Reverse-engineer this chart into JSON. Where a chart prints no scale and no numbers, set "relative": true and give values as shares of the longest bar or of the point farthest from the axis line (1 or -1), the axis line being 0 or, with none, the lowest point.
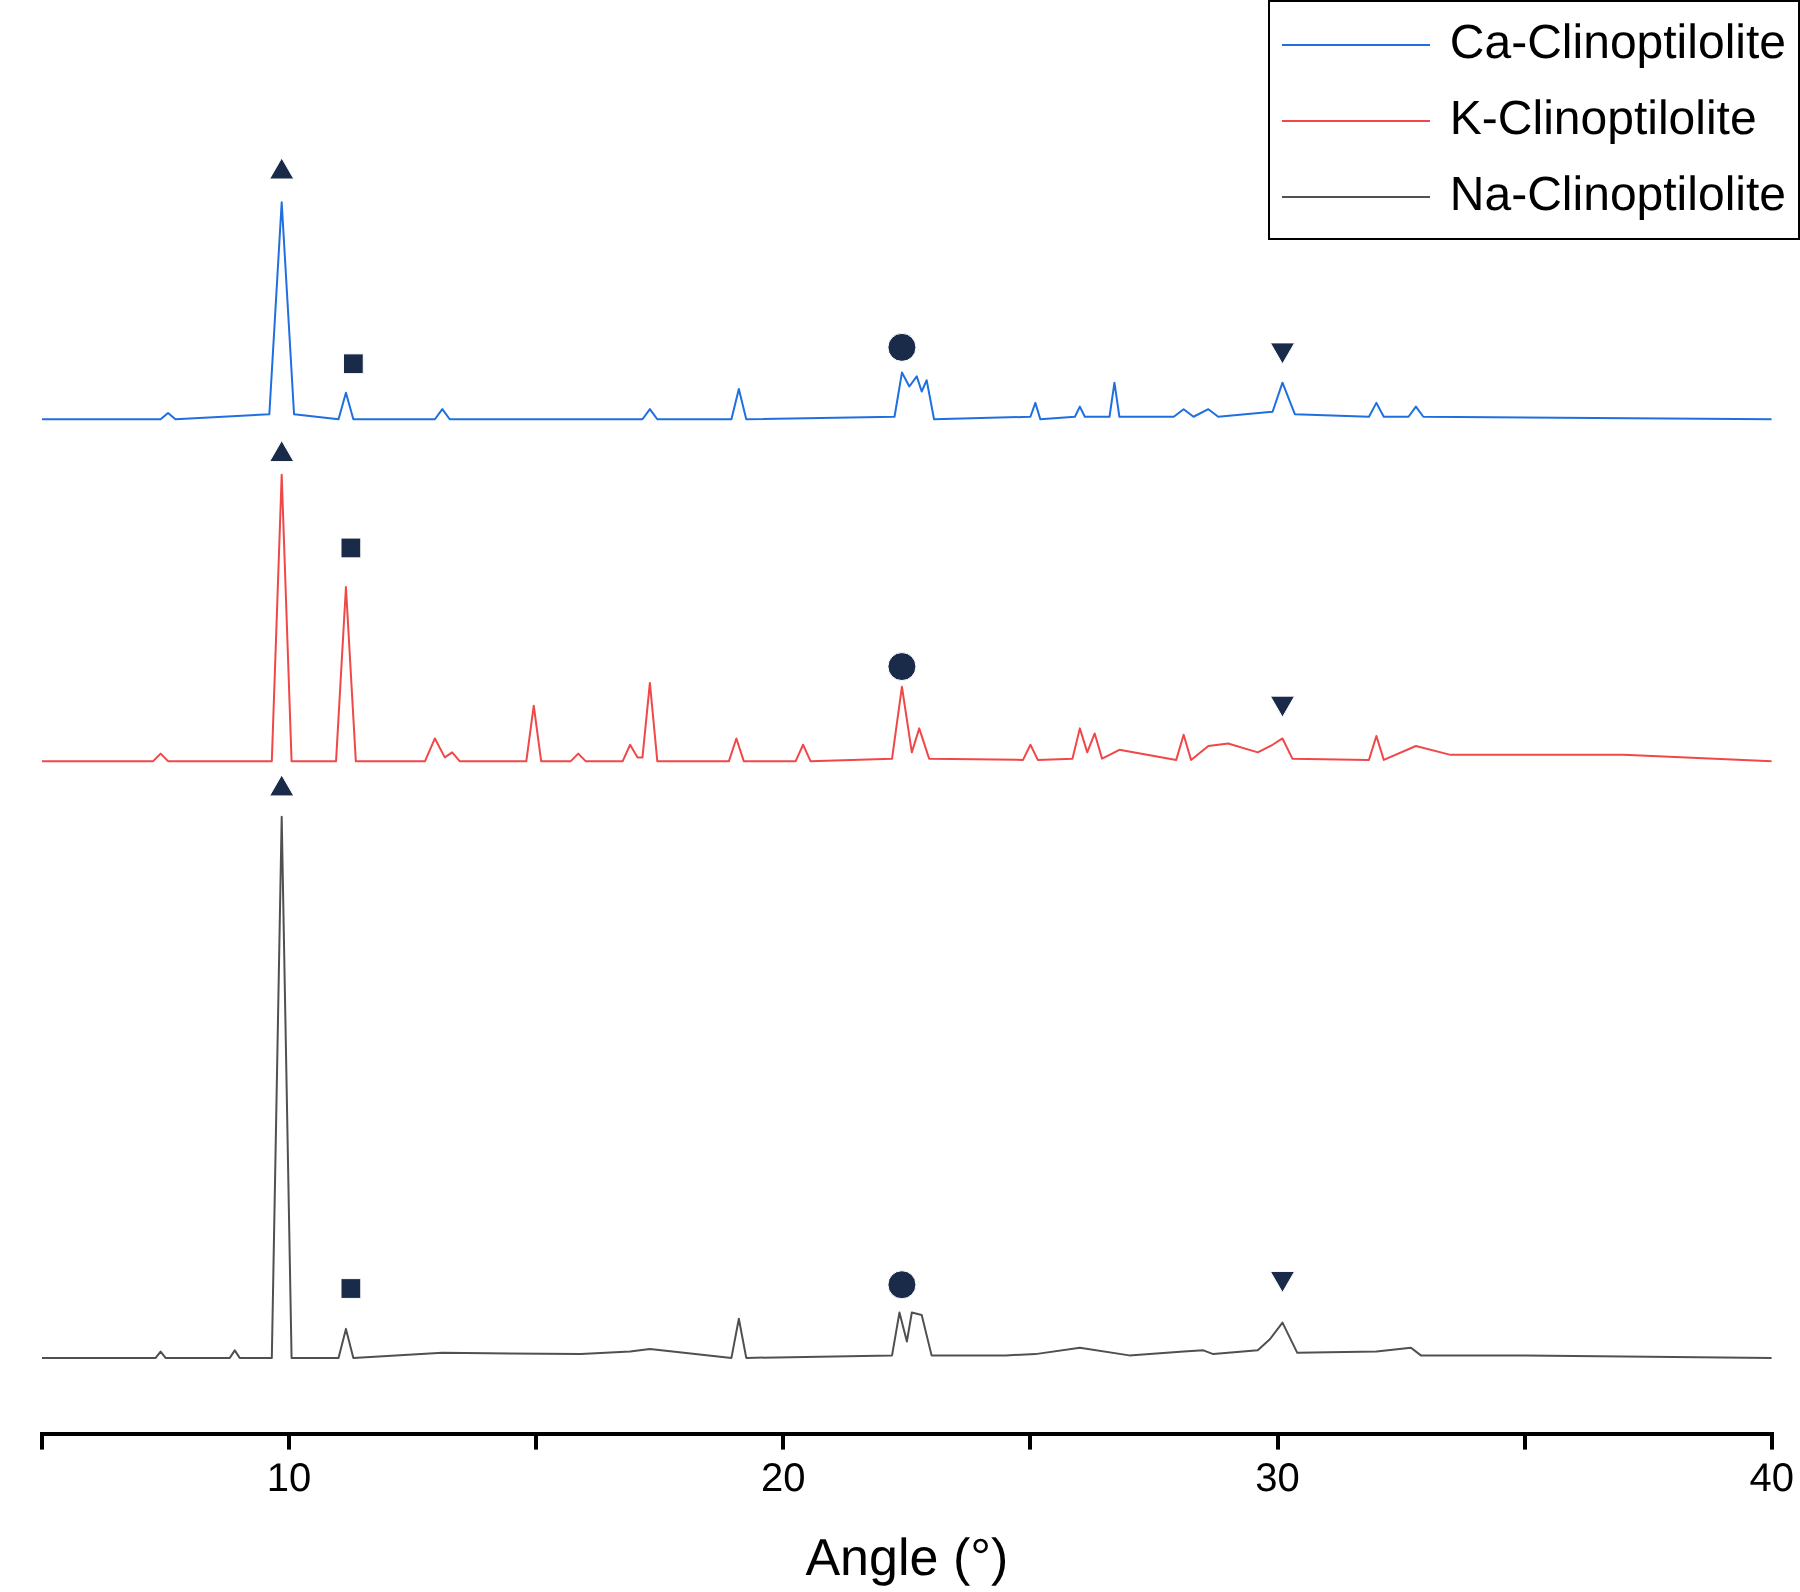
{
  "chart_data": {
    "type": "line",
    "xlabel": "Angle (°)",
    "relative": true,
    "xlim": [
      5,
      40
    ],
    "xticks": [
      {
        "value": 5,
        "label": null
      },
      10,
      {
        "value": 15,
        "label": null
      },
      20,
      {
        "value": 25,
        "label": null
      },
      30,
      {
        "value": 35,
        "label": null
      },
      40
    ],
    "legend": "top right",
    "grid": false,
    "marker": "none",
    "tick_labels": "x",
    "series": [
      {
        "name": "Ca-Clinoptilolite",
        "color": "#1f6fe0",
        "x": [
          5,
          7.4,
          7.55,
          7.7,
          9.6,
          9.85,
          10.1,
          11.0,
          11.15,
          11.3,
          12.95,
          13.1,
          13.25,
          17.15,
          17.3,
          17.45,
          18.95,
          19.1,
          19.25,
          22.25,
          22.4,
          22.55,
          22.7,
          22.8,
          22.9,
          23.05,
          25.0,
          25.1,
          25.2,
          25.9,
          26.0,
          26.1,
          26.6,
          26.7,
          26.8,
          27.9,
          28.1,
          28.3,
          28.6,
          28.8,
          29.9,
          30.1,
          30.35,
          31.85,
          32.0,
          32.15,
          32.65,
          32.8,
          32.95,
          40
        ],
        "values": [
          0.804,
          0.804,
          0.809,
          0.804,
          0.808,
          0.976,
          0.808,
          0.804,
          0.825,
          0.804,
          0.804,
          0.812,
          0.804,
          0.804,
          0.812,
          0.804,
          0.804,
          0.828,
          0.804,
          0.806,
          0.841,
          0.83,
          0.838,
          0.826,
          0.835,
          0.804,
          0.806,
          0.817,
          0.804,
          0.806,
          0.814,
          0.806,
          0.806,
          0.833,
          0.806,
          0.806,
          0.812,
          0.806,
          0.812,
          0.806,
          0.81,
          0.833,
          0.808,
          0.806,
          0.817,
          0.806,
          0.806,
          0.814,
          0.806,
          0.804
        ]
      },
      {
        "name": "K-Clinoptilolite",
        "color": "#f04848",
        "x": [
          5,
          7.25,
          7.4,
          7.55,
          9.65,
          9.85,
          10.05,
          10.95,
          11.15,
          11.35,
          12.75,
          12.95,
          13.15,
          13.3,
          13.45,
          14.8,
          14.95,
          15.1,
          15.7,
          15.85,
          16.0,
          16.75,
          16.9,
          17.05,
          17.15,
          17.3,
          17.45,
          18.9,
          19.05,
          19.2,
          20.25,
          20.4,
          20.55,
          22.2,
          22.4,
          22.6,
          22.75,
          22.95,
          24.85,
          25.0,
          25.15,
          25.85,
          26.0,
          26.15,
          26.3,
          26.45,
          26.8,
          27.95,
          28.1,
          28.25,
          28.6,
          29.0,
          29.6,
          29.9,
          30.1,
          30.3,
          31.85,
          32.0,
          32.15,
          32.8,
          33.5,
          37.0,
          40
        ],
        "values": [
          0.533,
          0.533,
          0.539,
          0.533,
          0.533,
          0.76,
          0.533,
          0.533,
          0.671,
          0.533,
          0.533,
          0.551,
          0.536,
          0.54,
          0.533,
          0.533,
          0.577,
          0.533,
          0.533,
          0.539,
          0.533,
          0.533,
          0.546,
          0.536,
          0.536,
          0.595,
          0.533,
          0.533,
          0.551,
          0.533,
          0.533,
          0.546,
          0.533,
          0.535,
          0.592,
          0.54,
          0.559,
          0.535,
          0.534,
          0.546,
          0.534,
          0.535,
          0.559,
          0.54,
          0.555,
          0.535,
          0.542,
          0.534,
          0.554,
          0.534,
          0.545,
          0.547,
          0.54,
          0.546,
          0.551,
          0.535,
          0.534,
          0.553,
          0.534,
          0.545,
          0.538,
          0.538,
          0.533
        ]
      },
      {
        "name": "Na-Clinoptilolite",
        "color": "#505050",
        "x": [
          5,
          7.3,
          7.4,
          7.5,
          8.8,
          8.9,
          9.0,
          9.65,
          9.85,
          10.05,
          11.0,
          11.15,
          11.3,
          13.1,
          15.9,
          16.9,
          17.3,
          18.95,
          19.1,
          19.25,
          22.2,
          22.35,
          22.5,
          22.6,
          22.8,
          23.0,
          24.5,
          25.1,
          26.0,
          27.0,
          28.1,
          28.5,
          28.7,
          29.6,
          29.85,
          30.1,
          30.4,
          32.0,
          32.7,
          32.9,
          35.0,
          40
        ],
        "values": [
          0.06,
          0.06,
          0.065,
          0.06,
          0.06,
          0.066,
          0.06,
          0.06,
          0.489,
          0.06,
          0.06,
          0.083,
          0.06,
          0.064,
          0.063,
          0.065,
          0.067,
          0.06,
          0.091,
          0.06,
          0.062,
          0.096,
          0.073,
          0.096,
          0.094,
          0.062,
          0.062,
          0.063,
          0.068,
          0.062,
          0.065,
          0.066,
          0.063,
          0.066,
          0.075,
          0.088,
          0.064,
          0.065,
          0.068,
          0.062,
          0.062,
          0.06
        ]
      },
      {
        "type": "scatter",
        "marker": "triangle",
        "color": "#1a2b4a",
        "x": [
          9.85,
          9.85,
          9.85
        ],
        "values": [
          1.0,
          0.776,
          0.511
        ]
      },
      {
        "type": "scatter",
        "marker": "square",
        "color": "#1a2b4a",
        "x": [
          11.3,
          11.25,
          11.25
        ],
        "values": [
          0.848,
          0.702,
          0.115
        ]
      },
      {
        "type": "scatter",
        "marker": "circle",
        "color": "#1a2b4a",
        "x": [
          22.4,
          22.4,
          22.4
        ],
        "values": [
          0.861,
          0.608,
          0.118
        ]
      },
      {
        "type": "scatter",
        "marker": "triangle-down",
        "color": "#1a2b4a",
        "x": [
          30.1,
          30.1,
          30.1
        ],
        "values": [
          0.859,
          0.579,
          0.123
        ]
      }
    ]
  }
}
